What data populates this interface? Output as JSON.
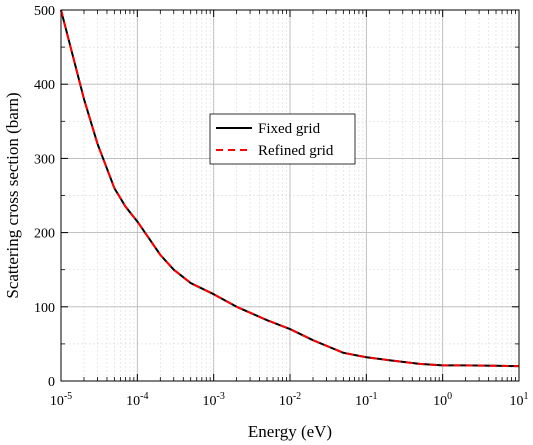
{
  "chart_data": {
    "type": "line",
    "xlabel": "Energy (eV)",
    "ylabel": "Scattering cross section (barn)",
    "xscale": "log",
    "xlim": [
      1e-05,
      10
    ],
    "ylim": [
      0,
      500
    ],
    "xticks": [
      {
        "value": 1e-05,
        "base": "10",
        "exp": "-5"
      },
      {
        "value": 0.0001,
        "base": "10",
        "exp": "-4"
      },
      {
        "value": 0.001,
        "base": "10",
        "exp": "-3"
      },
      {
        "value": 0.01,
        "base": "10",
        "exp": "-2"
      },
      {
        "value": 0.1,
        "base": "10",
        "exp": "-1"
      },
      {
        "value": 1,
        "base": "10",
        "exp": "0"
      },
      {
        "value": 10,
        "base": "10",
        "exp": "1"
      }
    ],
    "yticks": [
      0,
      100,
      200,
      300,
      400,
      500
    ],
    "grid": true,
    "legend_position": "center",
    "series": [
      {
        "name": "Fixed grid",
        "color": "#000000",
        "style": "solid",
        "x": [
          1e-05,
          2e-05,
          3e-05,
          5e-05,
          7e-05,
          0.0001,
          0.0002,
          0.0003,
          0.0005,
          0.001,
          0.002,
          0.005,
          0.01,
          0.02,
          0.05,
          0.1,
          0.2,
          0.5,
          1,
          2,
          5,
          10
        ],
        "y": [
          500,
          380,
          320,
          260,
          235,
          215,
          170,
          150,
          132,
          117,
          100,
          82,
          70,
          55,
          38,
          32,
          28,
          23,
          21,
          21,
          20.5,
          20
        ]
      },
      {
        "name": "Refined grid",
        "color": "#ff0000",
        "style": "dashed",
        "x": [
          1e-05,
          2e-05,
          3e-05,
          5e-05,
          7e-05,
          0.0001,
          0.0002,
          0.0003,
          0.0005,
          0.001,
          0.002,
          0.005,
          0.01,
          0.02,
          0.05,
          0.1,
          0.2,
          0.5,
          1,
          2,
          5,
          10
        ],
        "y": [
          500,
          380,
          320,
          260,
          235,
          215,
          170,
          150,
          132,
          117,
          100,
          82,
          70,
          55,
          38,
          32,
          28,
          23,
          21,
          21,
          20.5,
          20
        ]
      }
    ]
  }
}
